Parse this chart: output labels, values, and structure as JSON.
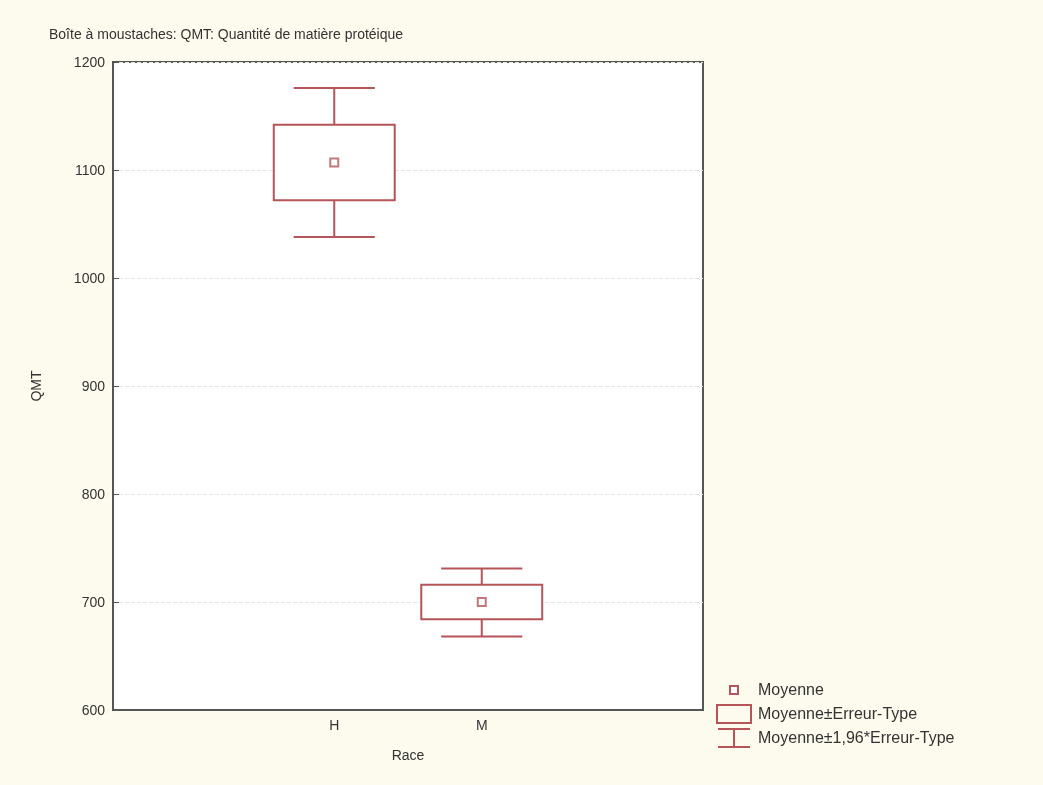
{
  "chart_data": {
    "type": "box",
    "title": "Boîte à moustaches: QMT: Quantité de matière protéique",
    "xlabel": "Race",
    "ylabel": "QMT",
    "categories": [
      null,
      "H",
      "M",
      null
    ],
    "boxes": [
      null,
      {
        "low": 1038,
        "q1": 1072,
        "q3": 1142,
        "high": 1176,
        "mean": 1107
      },
      {
        "low": 668,
        "q1": 684,
        "q3": 716,
        "high": 731,
        "mean": 700
      },
      null
    ],
    "color": "#b5555a",
    "ylim": [
      600,
      1200
    ],
    "yticks": [
      600,
      700,
      800,
      900,
      1000,
      1100,
      1200
    ],
    "grid": "y",
    "annotations": [
      "Moyenne",
      "Moyenne±Erreur-Type",
      "Moyenne±1,96*Erreur-Type"
    ]
  }
}
